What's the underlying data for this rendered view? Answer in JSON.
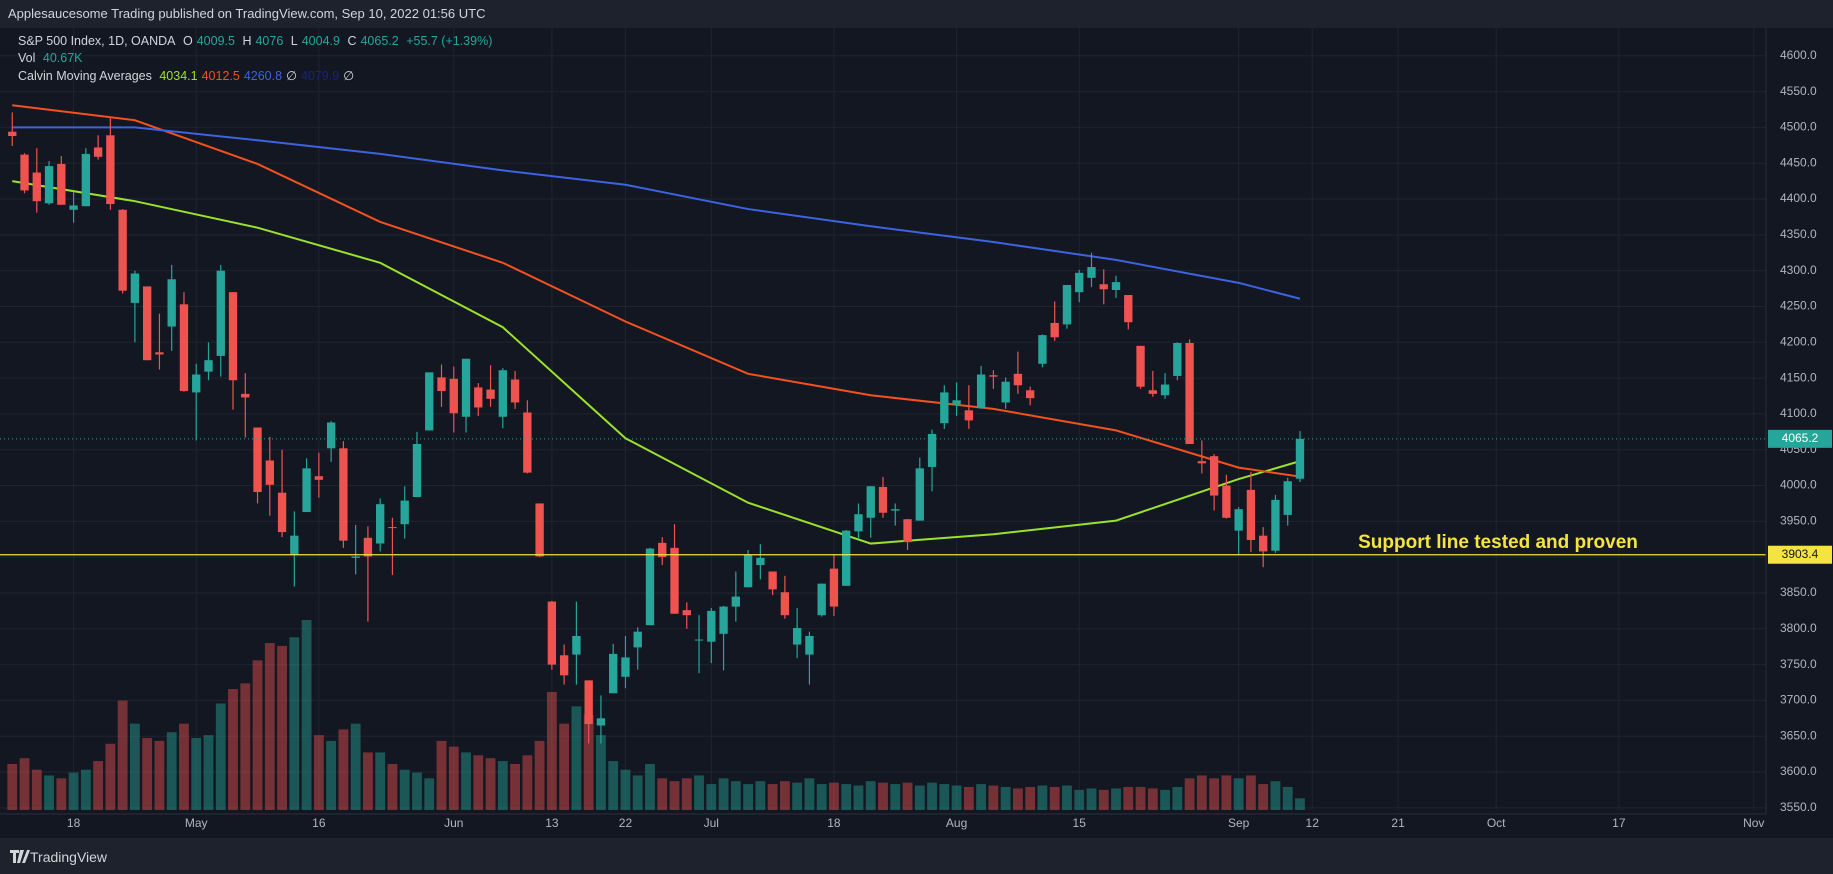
{
  "header": {
    "publisher": "Applesaucesome Trading published on TradingView.com, Sep 10, 2022 01:56 UTC",
    "brand": "TradingView"
  },
  "chart_data": {
    "type": "candlestick",
    "symbol": "S&P 500 Index, 1D, OANDA",
    "change": "+55.7 (+1.39%)",
    "volume_name": "Vol",
    "volume_last_label": "40.67K",
    "ma_name": "Calvin Moving Averages",
    "ma_extra_labels": [
      "∅",
      "4079.9",
      "∅"
    ],
    "ohlc_labels": [
      "O",
      "H",
      "L",
      "C"
    ],
    "up_color": "#26a69a",
    "down_color": "#ef5350",
    "ohlc": [
      [
        4494,
        4521,
        4474,
        4488
      ],
      [
        4462,
        4464,
        4408,
        4412
      ],
      [
        4437,
        4471,
        4381,
        4397
      ],
      [
        4394,
        4453,
        4392,
        4446
      ],
      [
        4449,
        4460,
        4392,
        4392
      ],
      [
        4385,
        4410,
        4367,
        4391
      ],
      [
        4390,
        4471,
        4390,
        4463
      ],
      [
        4472,
        4489,
        4455,
        4459
      ],
      [
        4489,
        4513,
        4385,
        4393
      ],
      [
        4385,
        4386,
        4268,
        4272
      ],
      [
        4255,
        4300,
        4200,
        4296
      ],
      [
        4278,
        4278,
        4175,
        4175
      ],
      [
        4186,
        4240,
        4162,
        4183
      ],
      [
        4222,
        4308,
        4188,
        4288
      ],
      [
        4253,
        4270,
        4131,
        4132
      ],
      [
        4130,
        4170,
        4063,
        4155
      ],
      [
        4159,
        4200,
        4147,
        4175
      ],
      [
        4181,
        4308,
        4152,
        4300
      ],
      [
        4270,
        4270,
        4106,
        4147
      ],
      [
        4128,
        4157,
        4067,
        4123
      ],
      [
        4081,
        4081,
        3975,
        3991
      ],
      [
        4035,
        4068,
        3958,
        4001
      ],
      [
        3990,
        4050,
        3928,
        3935
      ],
      [
        3903,
        3964,
        3859,
        3930
      ],
      [
        3963,
        4038,
        3963,
        4024
      ],
      [
        4013,
        4046,
        3983,
        4008
      ],
      [
        4052,
        4090,
        4033,
        4088
      ],
      [
        4052,
        4062,
        3913,
        3923
      ],
      [
        3899,
        3945,
        3876,
        3901
      ],
      [
        3927,
        3943,
        3810,
        3901
      ],
      [
        3919,
        3982,
        3908,
        3974
      ],
      [
        3942,
        3955,
        3875,
        3941
      ],
      [
        3946,
        3999,
        3926,
        3979
      ],
      [
        3984,
        4075,
        3984,
        4058
      ],
      [
        4077,
        4158,
        4077,
        4158
      ],
      [
        4151,
        4169,
        4110,
        4132
      ],
      [
        4149,
        4166,
        4074,
        4101
      ],
      [
        4096,
        4177,
        4074,
        4177
      ],
      [
        4137,
        4143,
        4097,
        4109
      ],
      [
        4134,
        4168,
        4110,
        4121
      ],
      [
        4096,
        4164,
        4080,
        4161
      ],
      [
        4148,
        4160,
        4107,
        4116
      ],
      [
        4102,
        4119,
        4017,
        4018
      ],
      [
        3975,
        3975,
        3900,
        3901
      ],
      [
        3838,
        3839,
        3743,
        3750
      ],
      [
        3763,
        3778,
        3722,
        3735
      ],
      [
        3764,
        3838,
        3722,
        3790
      ],
      [
        3728,
        3728,
        3640,
        3667
      ],
      [
        3665,
        3707,
        3640,
        3675
      ],
      [
        3710,
        3779,
        3710,
        3765
      ],
      [
        3733,
        3790,
        3717,
        3760
      ],
      [
        3774,
        3802,
        3743,
        3796
      ],
      [
        3805,
        3913,
        3805,
        3912
      ],
      [
        3920,
        3928,
        3889,
        3900
      ],
      [
        3913,
        3946,
        3821,
        3821
      ],
      [
        3826,
        3837,
        3800,
        3819
      ],
      [
        3785,
        3819,
        3738,
        3785
      ],
      [
        3782,
        3829,
        3752,
        3825
      ],
      [
        3793,
        3832,
        3742,
        3831
      ],
      [
        3831,
        3880,
        3810,
        3845
      ],
      [
        3858,
        3910,
        3858,
        3903
      ],
      [
        3889,
        3918,
        3869,
        3899
      ],
      [
        3880,
        3880,
        3847,
        3855
      ],
      [
        3851,
        3874,
        3814,
        3819
      ],
      [
        3778,
        3829,
        3759,
        3801
      ],
      [
        3764,
        3796,
        3722,
        3790
      ],
      [
        3819,
        3863,
        3817,
        3863
      ],
      [
        3884,
        3903,
        3818,
        3831
      ],
      [
        3860,
        3938,
        3860,
        3937
      ],
      [
        3936,
        3975,
        3925,
        3960
      ],
      [
        3955,
        3999,
        3927,
        3999
      ],
      [
        3998,
        4012,
        3955,
        3962
      ],
      [
        3965,
        3975,
        3944,
        3967
      ],
      [
        3953,
        3953,
        3910,
        3921
      ],
      [
        3951,
        4039,
        3951,
        4024
      ],
      [
        4026,
        4078,
        3992,
        4072
      ],
      [
        4087,
        4140,
        4079,
        4130
      ],
      [
        4113,
        4144,
        4097,
        4119
      ],
      [
        4105,
        4140,
        4079,
        4091
      ],
      [
        4108,
        4167,
        4107,
        4155
      ],
      [
        4154,
        4161,
        4135,
        4152
      ],
      [
        4116,
        4151,
        4107,
        4145
      ],
      [
        4156,
        4187,
        4128,
        4140
      ],
      [
        4133,
        4138,
        4112,
        4122
      ],
      [
        4170,
        4211,
        4165,
        4210
      ],
      [
        4227,
        4257,
        4202,
        4207
      ],
      [
        4225,
        4280,
        4219,
        4280
      ],
      [
        4270,
        4301,
        4256,
        4297
      ],
      [
        4290,
        4325,
        4277,
        4305
      ],
      [
        4281,
        4302,
        4253,
        4274
      ],
      [
        4273,
        4293,
        4262,
        4284
      ],
      [
        4266,
        4266,
        4218,
        4228
      ],
      [
        4195,
        4195,
        4135,
        4138
      ],
      [
        4133,
        4160,
        4124,
        4128
      ],
      [
        4126,
        4157,
        4121,
        4141
      ],
      [
        4153,
        4200,
        4147,
        4199
      ],
      [
        4199,
        4204,
        4058,
        4058
      ],
      [
        4034,
        4063,
        4017,
        4031
      ],
      [
        4041,
        4044,
        3965,
        3986
      ],
      [
        4000,
        4015,
        3954,
        3955
      ],
      [
        3937,
        3970,
        3903,
        3967
      ],
      [
        3994,
        4019,
        3907,
        3924
      ],
      [
        3930,
        3942,
        3886,
        3908
      ],
      [
        3909,
        3987,
        3906,
        3980
      ],
      [
        3959,
        4011,
        3944,
        4006
      ],
      [
        4009.5,
        4076.0,
        4004.9,
        4065.2
      ]
    ],
    "volume": [
      160,
      180,
      140,
      120,
      110,
      130,
      140,
      170,
      230,
      380,
      300,
      250,
      240,
      270,
      300,
      250,
      260,
      370,
      420,
      440,
      520,
      580,
      570,
      600,
      660,
      260,
      240,
      280,
      300,
      200,
      200,
      160,
      140,
      130,
      110,
      240,
      220,
      200,
      190,
      180,
      170,
      160,
      190,
      240,
      410,
      300,
      360,
      330,
      260,
      170,
      140,
      120,
      160,
      110,
      100,
      110,
      120,
      90,
      110,
      100,
      90,
      100,
      90,
      100,
      95,
      110,
      90,
      95,
      90,
      85,
      100,
      95,
      90,
      95,
      85,
      95,
      90,
      85,
      80,
      90,
      85,
      80,
      75,
      80,
      85,
      80,
      85,
      70,
      75,
      70,
      75,
      80,
      80,
      75,
      70,
      80,
      110,
      120,
      110,
      120,
      110,
      120,
      90,
      100,
      80,
      40.67
    ],
    "ma": [
      {
        "color": "#9be22a",
        "x": [
          0,
          10,
          20,
          30,
          40,
          50,
          60,
          70,
          80,
          90,
          100,
          105
        ],
        "values": [
          4425,
          4397,
          4360,
          4311,
          4221,
          4066,
          3976,
          3919,
          3932,
          3951,
          4009,
          4034.1
        ]
      },
      {
        "color": "#f4511e",
        "x": [
          0,
          10,
          20,
          30,
          40,
          50,
          60,
          70,
          80,
          90,
          100,
          105
        ],
        "values": [
          4531,
          4510,
          4449,
          4368,
          4311,
          4229,
          4156,
          4126,
          4107,
          4077,
          4025,
          4012.5
        ]
      },
      {
        "color": "#3d63e0",
        "x": [
          0,
          10,
          20,
          30,
          40,
          50,
          60,
          70,
          80,
          90,
          100,
          105
        ],
        "values": [
          4500,
          4500,
          4482,
          4463,
          4440,
          4420,
          4386,
          4362,
          4340,
          4315,
          4283,
          4260.8
        ]
      }
    ],
    "support": {
      "value": 3903.4,
      "label": "Support line tested and proven",
      "color": "#f5e342"
    },
    "xlim": [
      -1,
      143
    ],
    "xticks": [
      {
        "value": 5,
        "label": "18"
      },
      {
        "value": 15,
        "label": "May"
      },
      {
        "value": 25,
        "label": "16"
      },
      {
        "value": 36,
        "label": "Jun"
      },
      {
        "value": 44,
        "label": "13"
      },
      {
        "value": 50,
        "label": "22"
      },
      {
        "value": 57,
        "label": "Jul"
      },
      {
        "value": 67,
        "label": "18"
      },
      {
        "value": 77,
        "label": "Aug"
      },
      {
        "value": 87,
        "label": "15"
      },
      {
        "value": 100,
        "label": "Sep"
      },
      {
        "value": 106,
        "label": "12"
      },
      {
        "value": 113,
        "label": "21"
      },
      {
        "value": 121,
        "label": "Oct"
      },
      {
        "value": 131,
        "label": "17"
      },
      {
        "value": 142,
        "label": "Nov"
      }
    ],
    "ylim": [
      3547,
      4636
    ],
    "yticks": [
      {
        "value": 3550,
        "label": "3550.0"
      },
      {
        "value": 3600,
        "label": "3600.0"
      },
      {
        "value": 3650,
        "label": "3650.0"
      },
      {
        "value": 3700,
        "label": "3700.0"
      },
      {
        "value": 3750,
        "label": "3750.0"
      },
      {
        "value": 3800,
        "label": "3800.0"
      },
      {
        "value": 3850,
        "label": "3850.0"
      },
      {
        "value": 3900,
        "label": "3900.0"
      },
      {
        "value": 3950,
        "label": "3950.0"
      },
      {
        "value": 4000,
        "label": "4000.0"
      },
      {
        "value": 4050,
        "label": "4050.0"
      },
      {
        "value": 4100,
        "label": "4100.0"
      },
      {
        "value": 4150,
        "label": "4150.0"
      },
      {
        "value": 4200,
        "label": "4200.0"
      },
      {
        "value": 4250,
        "label": "4250.0"
      },
      {
        "value": 4300,
        "label": "4300.0"
      },
      {
        "value": 4350,
        "label": "4350.0"
      },
      {
        "value": 4400,
        "label": "4400.0"
      },
      {
        "value": 4450,
        "label": "4450.0"
      },
      {
        "value": 4500,
        "label": "4500.0"
      },
      {
        "value": 4550,
        "label": "4550.0"
      },
      {
        "value": 4600,
        "label": "4600.0"
      }
    ],
    "grid": true
  }
}
